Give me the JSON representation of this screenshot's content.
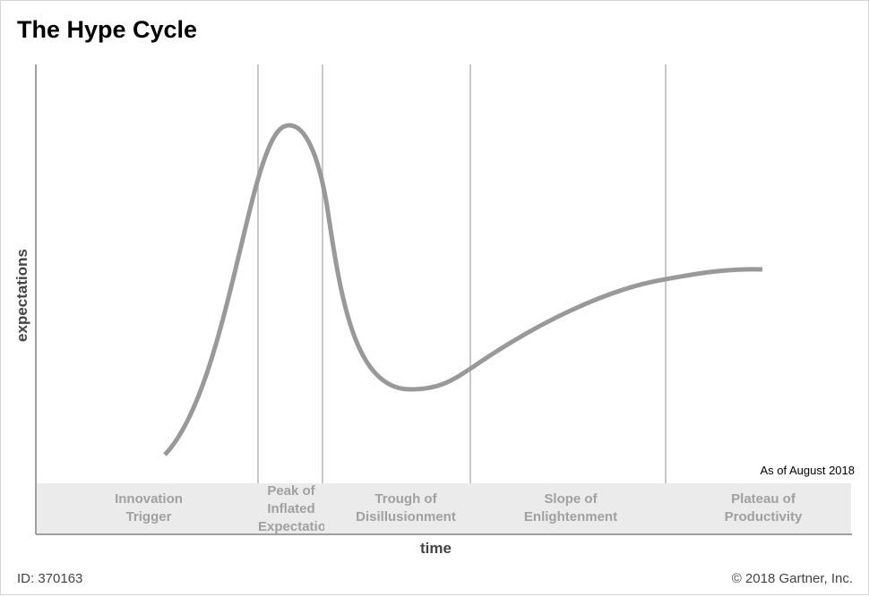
{
  "title": "The Hype Cycle",
  "y_axis_label": "expectations",
  "x_axis_label": "time",
  "as_of": "As of August 2018",
  "phases": [
    {
      "label": "Innovation Trigger"
    },
    {
      "label": "Peak of Inflated Expectations"
    },
    {
      "label": "Trough of Disillusionment"
    },
    {
      "label": "Slope of Enlightenment"
    },
    {
      "label": "Plateau of Productivity"
    }
  ],
  "footer": {
    "id": "ID: 370163",
    "copyright": "© 2018 Gartner, Inc."
  },
  "colors": {
    "curve": "#999999",
    "phase_band": "#ebebeb",
    "phase_text": "#a0a0a0",
    "divider": "#c8c8c8"
  }
}
